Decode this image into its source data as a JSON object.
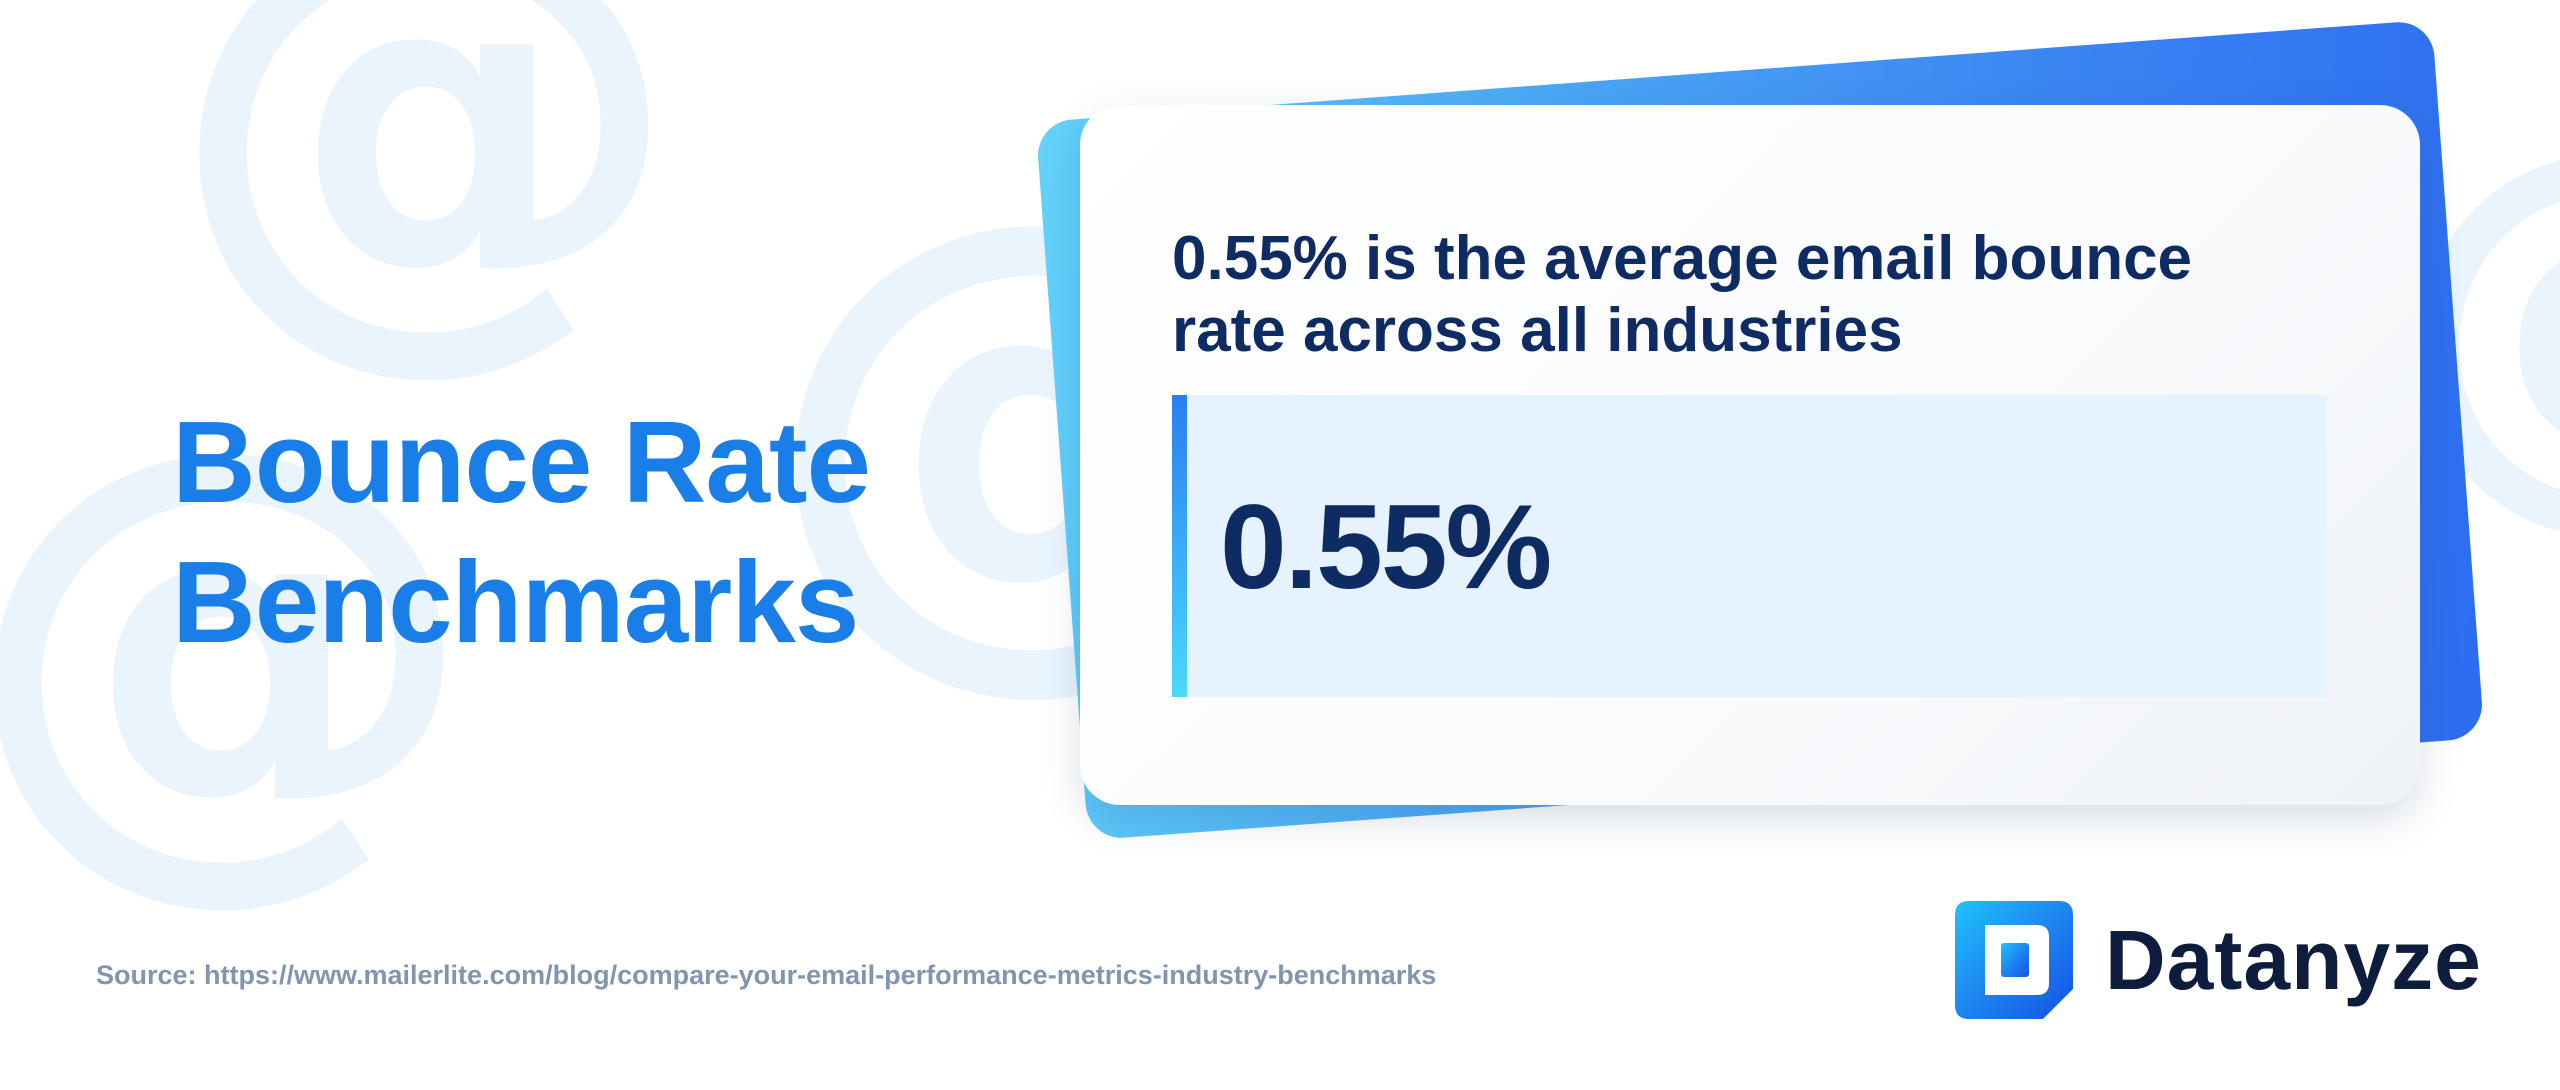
{
  "title": {
    "line1": "Bounce Rate",
    "line2": "Benchmarks"
  },
  "card": {
    "heading": "0.55% is the average email bounce rate across all industries",
    "stat_value": "0.55%"
  },
  "footer": {
    "source": "Source: https://www.mailerlite.com/blog/compare-your-email-performance-metrics-industry-benchmarks"
  },
  "brand": {
    "name": "Datanyze",
    "logo_icon": "datanyze-logo-icon"
  },
  "decorations": {
    "glyph": "@",
    "glyph_icon": "at-sign-icon"
  },
  "colors": {
    "title": "#1a7ee8",
    "heading": "#0f2b63",
    "stat_background": "#e6f2fe",
    "accent_gradient_start": "#2a7ef0",
    "accent_gradient_end": "#4ad9fb",
    "source_text": "#8195b0",
    "watermark": "#e9f4fd"
  }
}
